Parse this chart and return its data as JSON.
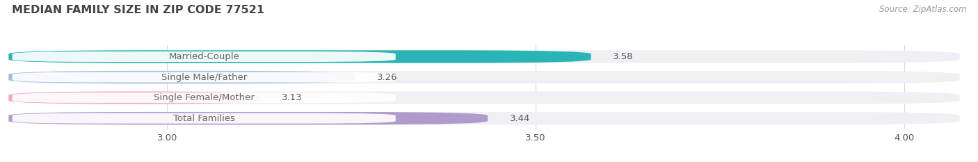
{
  "title": "MEDIAN FAMILY SIZE IN ZIP CODE 77521",
  "source": "Source: ZipAtlas.com",
  "categories": [
    "Married-Couple",
    "Single Male/Father",
    "Single Female/Mother",
    "Total Families"
  ],
  "values": [
    3.58,
    3.26,
    3.13,
    3.44
  ],
  "bar_colors": [
    "#29b5b5",
    "#a0bce0",
    "#f4a8c4",
    "#b09ccc"
  ],
  "xlim_min": 2.78,
  "xlim_max": 4.08,
  "xticks": [
    3.0,
    3.5,
    4.0
  ],
  "label_fontsize": 9.5,
  "value_fontsize": 9.5,
  "title_fontsize": 11.5,
  "source_fontsize": 8.5,
  "background_color": "#ffffff",
  "bar_height": 0.62,
  "bar_bg_color": "#f0f0f4",
  "grid_color": "#d8d8d8",
  "text_color": "#666666",
  "title_color": "#444444",
  "value_color": "#555555"
}
